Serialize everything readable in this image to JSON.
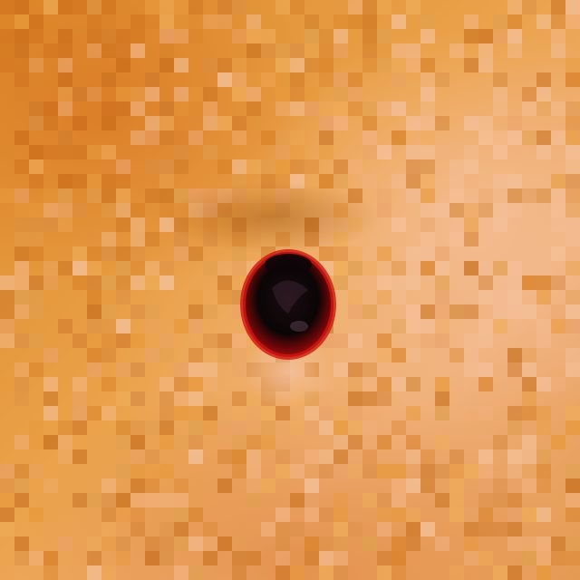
{
  "scene": {
    "subject": "ladybug",
    "colors": {
      "background_base": "#e8962e",
      "background_light": "#f2b88a",
      "background_dark": "#c86c1e",
      "shell_red": "#c01010",
      "shell_dark": "#0a0506",
      "highlight": "#f3c7b0"
    }
  }
}
